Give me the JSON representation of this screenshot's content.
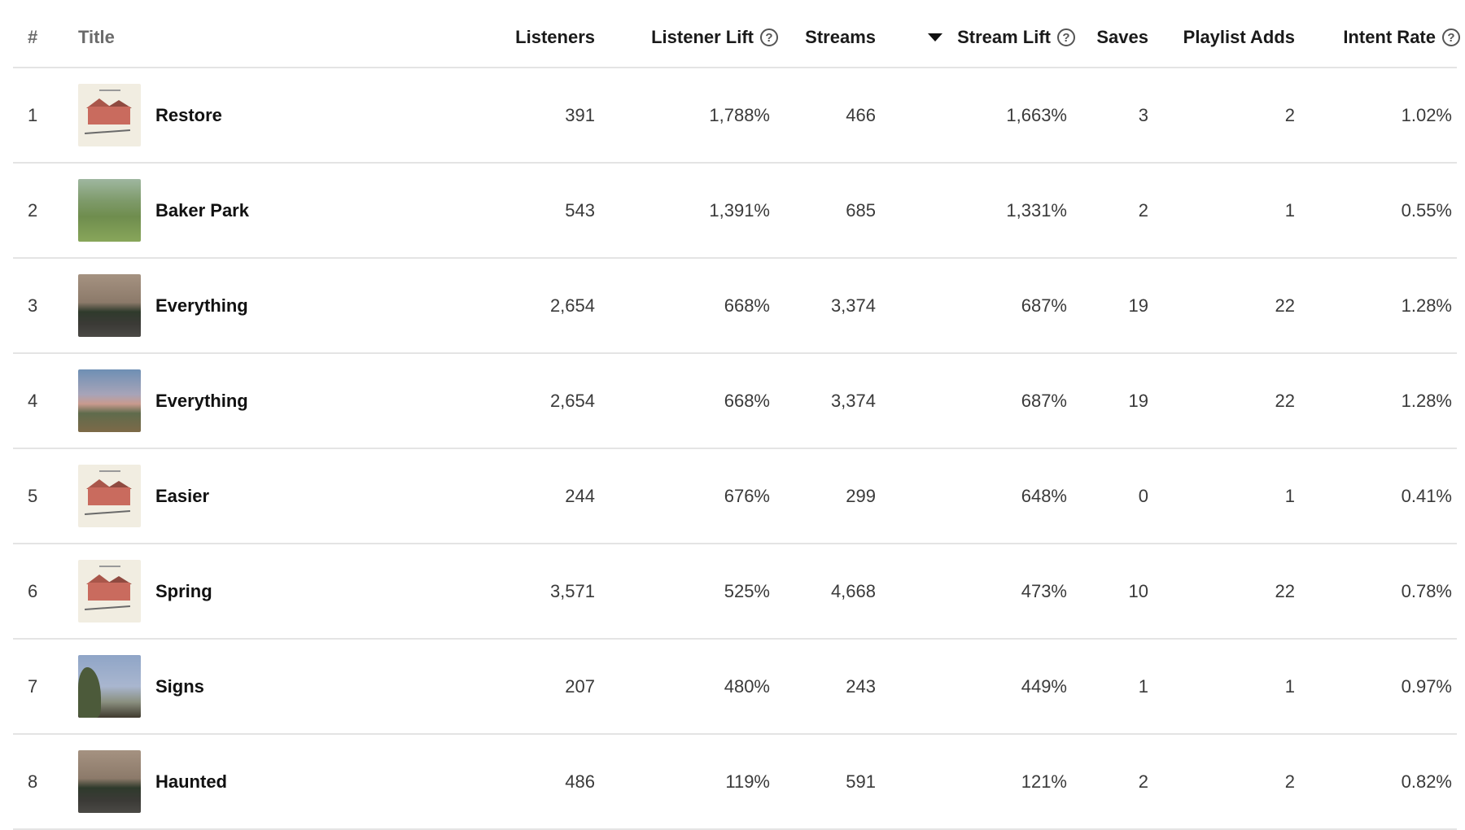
{
  "columns": {
    "rank": "#",
    "title": "Title",
    "listeners": "Listeners",
    "listener_lift": "Listener Lift",
    "streams": "Streams",
    "stream_lift": "Stream Lift",
    "saves": "Saves",
    "playlist_adds": "Playlist Adds",
    "intent_rate": "Intent Rate",
    "help_glyph": "?"
  },
  "sort": {
    "column": "stream_lift",
    "direction": "descending"
  },
  "rows": [
    {
      "rank": "1",
      "title": "Restore",
      "art": "house-cover",
      "listeners": "391",
      "listener_lift": "1,788%",
      "streams": "466",
      "stream_lift": "1,663%",
      "saves": "3",
      "playlist_adds": "2",
      "intent_rate": "1.02%"
    },
    {
      "rank": "2",
      "title": "Baker Park",
      "art": "park-cover",
      "listeners": "543",
      "listener_lift": "1,391%",
      "streams": "685",
      "stream_lift": "1,331%",
      "saves": "2",
      "playlist_adds": "1",
      "intent_rate": "0.55%"
    },
    {
      "rank": "3",
      "title": "Everything",
      "art": "dusk-road-cover",
      "listeners": "2,654",
      "listener_lift": "668%",
      "streams": "3,374",
      "stream_lift": "687%",
      "saves": "19",
      "playlist_adds": "22",
      "intent_rate": "1.28%"
    },
    {
      "rank": "4",
      "title": "Everything",
      "art": "sky-field-cover",
      "listeners": "2,654",
      "listener_lift": "668%",
      "streams": "3,374",
      "stream_lift": "687%",
      "saves": "19",
      "playlist_adds": "22",
      "intent_rate": "1.28%"
    },
    {
      "rank": "5",
      "title": "Easier",
      "art": "house-cover",
      "listeners": "244",
      "listener_lift": "676%",
      "streams": "299",
      "stream_lift": "648%",
      "saves": "0",
      "playlist_adds": "1",
      "intent_rate": "0.41%"
    },
    {
      "rank": "6",
      "title": "Spring",
      "art": "house-cover",
      "listeners": "3,571",
      "listener_lift": "525%",
      "streams": "4,668",
      "stream_lift": "473%",
      "saves": "10",
      "playlist_adds": "22",
      "intent_rate": "0.78%"
    },
    {
      "rank": "7",
      "title": "Signs",
      "art": "tree-sky-cover",
      "listeners": "207",
      "listener_lift": "480%",
      "streams": "243",
      "stream_lift": "449%",
      "saves": "1",
      "playlist_adds": "1",
      "intent_rate": "0.97%"
    },
    {
      "rank": "8",
      "title": "Haunted",
      "art": "dusk-road-cover",
      "listeners": "486",
      "listener_lift": "119%",
      "streams": "591",
      "stream_lift": "121%",
      "saves": "2",
      "playlist_adds": "2",
      "intent_rate": "0.82%"
    }
  ]
}
